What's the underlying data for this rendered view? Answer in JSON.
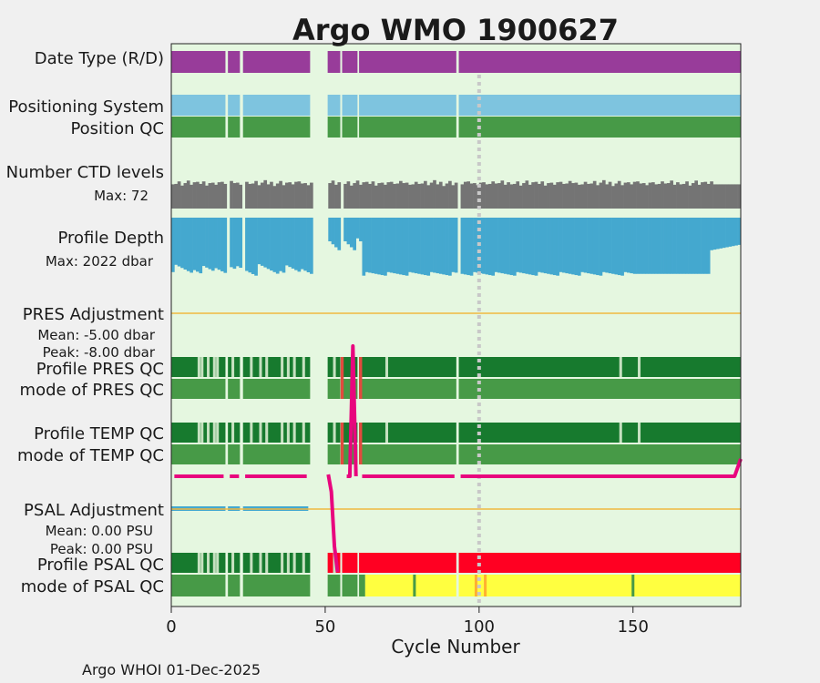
{
  "chart_data": {
    "type": "bar",
    "title": "Argo WMO 1900627",
    "xlabel": "Cycle Number",
    "xlim": [
      0,
      185
    ],
    "xticks": [
      0,
      50,
      100,
      150
    ],
    "xtick_labels": [
      "0",
      "50",
      "100",
      "150"
    ],
    "marker_cycle": 100,
    "footer": "Argo WHOI 01-Dec-2025",
    "colors": {
      "plot_bg": "#e5f7e0",
      "title": "#0b8bba",
      "realtime": "#983c9a",
      "positioning": "#7ec4df",
      "qc_good": "#479a47",
      "qc_dark": "#177a2e",
      "qc_light": "#c6e1c0",
      "qc_bad": "#ff0022",
      "qc_bad_soft": "#e24a3e",
      "qc_yellow": "#ffff40",
      "qc_orange": "#ffb030",
      "ctd": "#747474",
      "depth": "#44a8cf",
      "adjustment_line": "#f0b840",
      "adjustment_curve": "#e8067e",
      "psal_adj_bar": "#44a8cf",
      "marker": "#c8c8c8"
    },
    "gaps": [
      [
        17.6,
        18.4
      ],
      [
        22.3,
        23.3
      ],
      [
        45.1,
        50.8
      ],
      [
        54.9,
        55.5
      ],
      [
        60.5,
        61.0
      ],
      [
        92.6,
        93.4
      ]
    ],
    "rows": {
      "date_type": "Date Type (R/D)",
      "positioning": "Positioning System",
      "position_qc": "Position QC",
      "ctd_levels": "Number CTD levels",
      "ctd_max": "Max: 72",
      "profile_depth": "Profile Depth",
      "depth_max": "Max: 2022 dbar",
      "pres_adjustment": "PRES Adjustment",
      "pres_mean": "Mean: -5.00 dbar",
      "pres_peak": "Peak: -8.00 dbar",
      "profile_pres_qc": "Profile PRES QC",
      "mode_pres_qc": "mode of PRES QC",
      "profile_temp_qc": "Profile TEMP QC",
      "mode_temp_qc": "mode of TEMP QC",
      "psal_adjustment": "PSAL Adjustment",
      "psal_mean": "Mean: 0.00 PSU",
      "psal_peak": "Peak: 0.00 PSU",
      "profile_psal_qc": "Profile PSAL QC",
      "mode_psal_qc": "mode of PSAL QC"
    },
    "ctd_levels_max": 72,
    "depth_max_dbar": 2022,
    "pres_adjustment_dbar": {
      "cycles": [
        1,
        17,
        19,
        22,
        24,
        44,
        51,
        57,
        58,
        59,
        60,
        62,
        92,
        94,
        183,
        185
      ],
      "values": [
        -5,
        -5,
        -5,
        -5,
        -5,
        -5,
        -5,
        -5,
        -5,
        -8,
        -5,
        -5,
        -5,
        -5,
        -5,
        -5.4
      ]
    },
    "psal_adjustment_psu": {
      "cycles": [
        51,
        52,
        53,
        54
      ],
      "values": [
        0,
        0,
        0,
        0
      ]
    },
    "light_qc_cycles": {
      "pres": [
        9,
        10,
        12,
        14,
        15,
        20,
        26,
        29,
        31,
        36,
        38,
        40,
        43,
        53,
        70,
        146,
        152
      ],
      "temp": [
        9,
        10,
        12,
        14,
        15,
        20,
        26,
        29,
        31,
        36,
        38,
        40,
        43,
        53,
        70,
        146,
        152
      ],
      "psal": [
        9,
        10,
        12,
        14,
        15,
        20,
        26,
        29,
        31,
        36,
        38,
        40,
        43,
        53
      ]
    },
    "pres_qc_bad_cycles": [
      56,
      62
    ],
    "psal_mode_yellow_range": [
      63,
      185
    ],
    "psal_mode_orange_cycles": [
      99,
      102
    ],
    "psal_mode_green_cycles": [
      79,
      150
    ]
  }
}
